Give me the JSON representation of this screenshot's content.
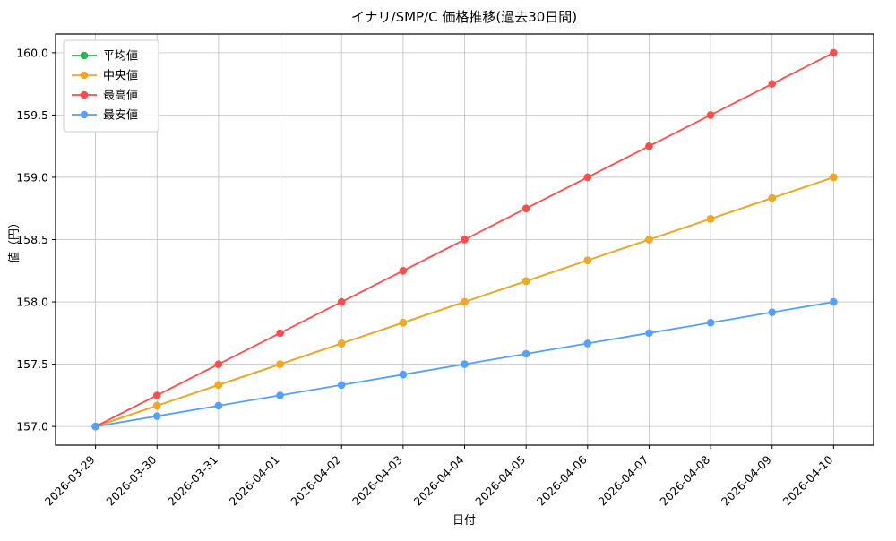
{
  "chart_data": {
    "type": "line",
    "title": "イナリ/SMP/C 価格推移(過去30日間)",
    "xlabel": "日付",
    "ylabel": "値（円）",
    "x": [
      "2026-03-29",
      "2026-03-30",
      "2026-03-31",
      "2026-04-01",
      "2026-04-02",
      "2026-04-03",
      "2026-04-04",
      "2026-04-05",
      "2026-04-06",
      "2026-04-07",
      "2026-04-08",
      "2026-04-09",
      "2026-04-10"
    ],
    "series": [
      {
        "key": "mean",
        "name": "平均値",
        "color": "#2bb54a",
        "values": [
          157.0,
          157.1667,
          157.3333,
          157.5,
          157.6667,
          157.8333,
          158.0,
          158.1667,
          158.3333,
          158.5,
          158.6667,
          158.8333,
          159.0
        ]
      },
      {
        "key": "median",
        "name": "中央値",
        "color": "#f5a623",
        "values": [
          157.0,
          157.1667,
          157.3333,
          157.5,
          157.6667,
          157.8333,
          158.0,
          158.1667,
          158.3333,
          158.5,
          158.6667,
          158.8333,
          159.0
        ]
      },
      {
        "key": "max",
        "name": "最高値",
        "color": "#ff4d4d",
        "values": [
          157.0,
          157.25,
          157.5,
          157.75,
          158.0,
          158.25,
          158.5,
          158.75,
          159.0,
          159.25,
          159.5,
          159.75,
          160.0
        ]
      },
      {
        "key": "min",
        "name": "最安値",
        "color": "#559fff",
        "values": [
          157.0,
          157.0833,
          157.1667,
          157.25,
          157.3333,
          157.4167,
          157.5,
          157.5833,
          157.6667,
          157.75,
          157.8333,
          157.9167,
          158.0
        ]
      }
    ],
    "ylim": [
      156.85,
      160.15
    ],
    "yticks": [
      157.0,
      157.5,
      158.0,
      158.5,
      159.0,
      159.5,
      160.0
    ],
    "grid": true,
    "legend_position": "upper left",
    "grid_color": "#c0c0c0",
    "axis_color": "#000000"
  }
}
